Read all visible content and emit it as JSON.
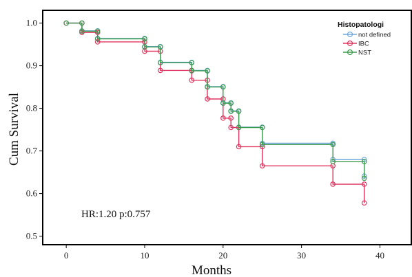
{
  "chart_data": {
    "type": "line",
    "subtype": "kaplan-meier step",
    "xlabel": "Months",
    "ylabel": "Cum Survival",
    "xlim": [
      -3,
      44
    ],
    "ylim": [
      0.48,
      1.03
    ],
    "x_ticks": [
      0,
      10,
      20,
      30,
      40
    ],
    "y_ticks": [
      0.5,
      0.6,
      0.7,
      0.8,
      0.9,
      1.0
    ],
    "x_tick_labels": [
      "0",
      "10",
      "20",
      "30",
      "40"
    ],
    "y_tick_labels": [
      "0.5",
      "0.6",
      "0.7",
      "0.8",
      "0.9",
      "1.0"
    ],
    "grid": false,
    "legend": {
      "title": "Histopatologi",
      "position": "top-right",
      "entries": [
        "not defined",
        "IBC",
        "NST"
      ]
    },
    "annotation": "HR:1.20  p:0.757",
    "series": [
      {
        "name": "not defined",
        "color": "#6fa8dc",
        "points": [
          [
            0,
            1.0
          ],
          [
            2,
            1.0
          ],
          [
            2,
            0.982
          ],
          [
            4,
            0.982
          ],
          [
            4,
            0.964
          ],
          [
            10,
            0.964
          ],
          [
            10,
            0.945
          ],
          [
            12,
            0.945
          ],
          [
            12,
            0.908
          ],
          [
            16,
            0.908
          ],
          [
            16,
            0.889
          ],
          [
            18,
            0.889
          ],
          [
            18,
            0.851
          ],
          [
            20,
            0.851
          ],
          [
            20,
            0.813
          ],
          [
            21,
            0.813
          ],
          [
            21,
            0.794
          ],
          [
            22,
            0.794
          ],
          [
            22,
            0.756
          ],
          [
            25,
            0.756
          ],
          [
            25,
            0.718
          ],
          [
            34,
            0.718
          ],
          [
            34,
            0.68
          ],
          [
            38,
            0.68
          ],
          [
            38,
            0.641
          ]
        ]
      },
      {
        "name": "IBC",
        "color": "#e0345f",
        "points": [
          [
            0,
            1.0
          ],
          [
            2,
            1.0
          ],
          [
            2,
            0.978
          ],
          [
            4,
            0.978
          ],
          [
            4,
            0.956
          ],
          [
            10,
            0.956
          ],
          [
            10,
            0.934
          ],
          [
            12,
            0.934
          ],
          [
            12,
            0.889
          ],
          [
            16,
            0.889
          ],
          [
            16,
            0.866
          ],
          [
            18,
            0.866
          ],
          [
            18,
            0.822
          ],
          [
            20,
            0.822
          ],
          [
            20,
            0.777
          ],
          [
            21,
            0.777
          ],
          [
            21,
            0.755
          ],
          [
            22,
            0.755
          ],
          [
            22,
            0.71
          ],
          [
            25,
            0.71
          ],
          [
            25,
            0.665
          ],
          [
            34,
            0.665
          ],
          [
            34,
            0.622
          ],
          [
            38,
            0.622
          ],
          [
            38,
            0.578
          ]
        ]
      },
      {
        "name": "NST",
        "color": "#3d9a4f",
        "points": [
          [
            0,
            1.0
          ],
          [
            2,
            1.0
          ],
          [
            2,
            0.981
          ],
          [
            4,
            0.981
          ],
          [
            4,
            0.963
          ],
          [
            10,
            0.963
          ],
          [
            10,
            0.944
          ],
          [
            12,
            0.944
          ],
          [
            12,
            0.907
          ],
          [
            16,
            0.907
          ],
          [
            16,
            0.888
          ],
          [
            18,
            0.888
          ],
          [
            18,
            0.85
          ],
          [
            20,
            0.85
          ],
          [
            20,
            0.812
          ],
          [
            21,
            0.812
          ],
          [
            21,
            0.793
          ],
          [
            22,
            0.793
          ],
          [
            22,
            0.755
          ],
          [
            25,
            0.755
          ],
          [
            25,
            0.715
          ],
          [
            34,
            0.715
          ],
          [
            34,
            0.675
          ],
          [
            38,
            0.675
          ],
          [
            38,
            0.636
          ]
        ]
      }
    ]
  }
}
